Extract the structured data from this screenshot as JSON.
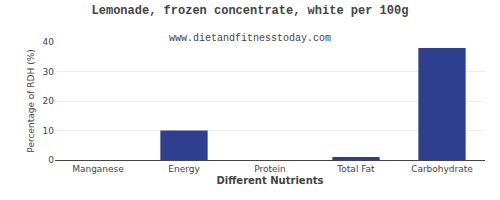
{
  "chart_data": {
    "type": "bar",
    "title": "Lemonade, frozen concentrate, white per 100g",
    "subtitle": "www.dietandfitnesstoday.com",
    "xlabel": "Different Nutrients",
    "ylabel": "Percentage of RDH (%)",
    "categories": [
      "Manganese",
      "Energy",
      "Protein",
      "Total Fat",
      "Carbohydrate"
    ],
    "values": [
      0,
      10,
      0,
      1,
      38
    ],
    "color": "#2e3f8f",
    "ylim": [
      0,
      40
    ],
    "yticks": [
      0,
      10,
      20,
      30,
      40
    ],
    "grid": true
  }
}
